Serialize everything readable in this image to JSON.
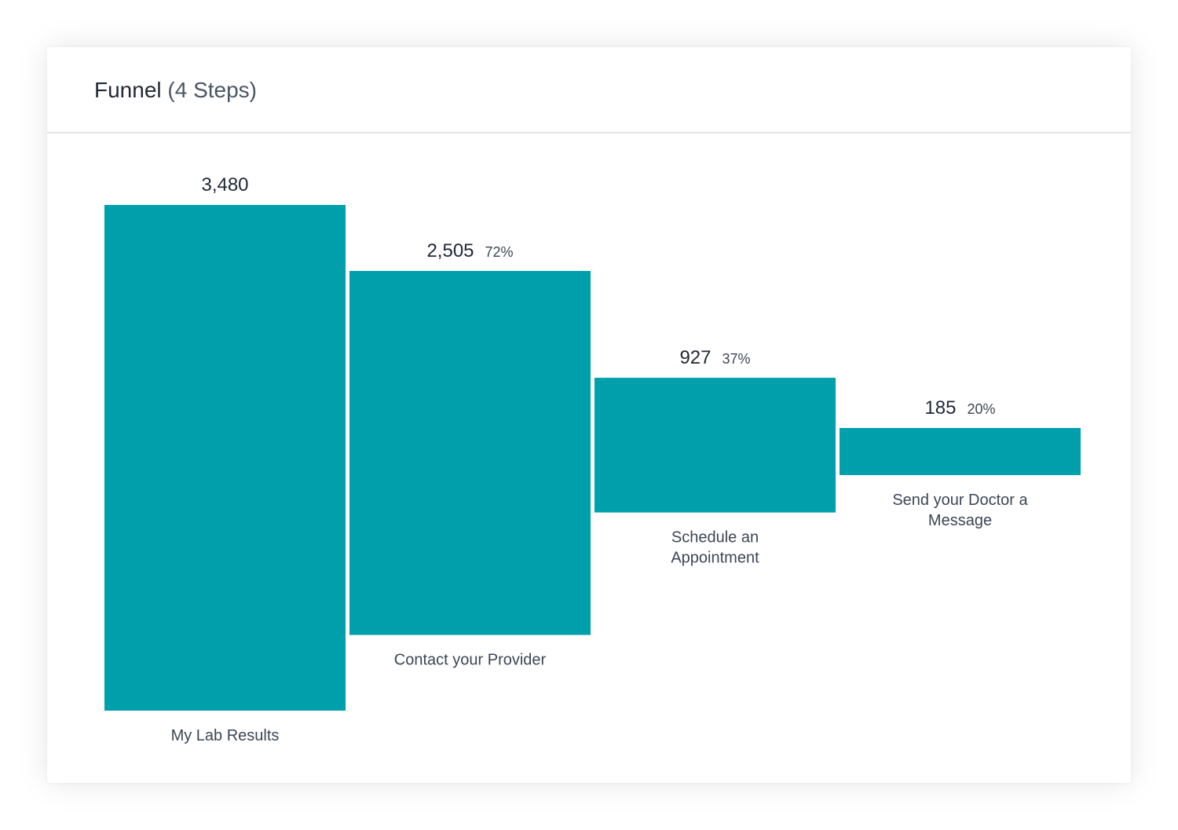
{
  "card": {
    "title": "Funnel",
    "subtitle": "(4 Steps)"
  },
  "colors": {
    "bar": "#009fac",
    "value_text": "#1f2733",
    "pct_text": "#3c4654",
    "label_text": "#3c4654"
  },
  "chart_data": {
    "type": "bar",
    "categories": [
      "My Lab Results",
      "Contact your Provider",
      "Schedule an Appointment",
      "Send your Doctor a Message"
    ],
    "category_lines": [
      [
        "My Lab Results"
      ],
      [
        "Contact your Provider"
      ],
      [
        "Schedule an",
        "Appointment"
      ],
      [
        "Send your Doctor a",
        "Message"
      ]
    ],
    "values": [
      3480,
      2505,
      927,
      185
    ],
    "value_labels": [
      "3,480",
      "2,505",
      "927",
      "185"
    ],
    "percent_labels": [
      "",
      "72%",
      "37%",
      "20%"
    ],
    "title": "Funnel (4 Steps)",
    "xlabel": "",
    "ylabel": "",
    "ylim": [
      0,
      3480
    ],
    "grid": false,
    "legend": "none"
  }
}
